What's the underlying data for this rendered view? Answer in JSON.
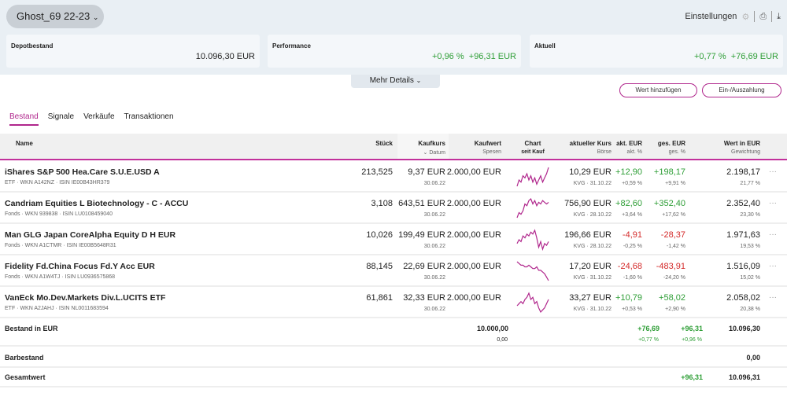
{
  "header": {
    "depot": "Ghost_69 22-23",
    "settings": "Einstellungen",
    "icons": [
      "gear-icon",
      "printer-icon",
      "download-icon"
    ]
  },
  "cards": [
    {
      "label": "Depotbestand",
      "value": "10.096,30 EUR"
    },
    {
      "label": "Performance",
      "pct": "+0,96 %",
      "eur": "+96,31 EUR"
    },
    {
      "label": "Aktuell",
      "pct": "+0,77 %",
      "eur": "+76,69 EUR"
    }
  ],
  "more_details": "Mehr Details",
  "buttons": {
    "add": "Wert hinzufügen",
    "deposit": "Ein-/Auszahlung"
  },
  "tabs": [
    "Bestand",
    "Signale",
    "Verkäufe",
    "Transaktionen"
  ],
  "columns": {
    "name": "Name",
    "stueck": "Stück",
    "kaufkurs": "Kaufkurs",
    "datum": "Datum",
    "kaufwert": "Kaufwert",
    "spesen": "Spesen",
    "chart": "Chart",
    "seit_kauf": "seit Kauf",
    "kurs": "aktueller Kurs",
    "boerse": "Börse",
    "akt_eur": "akt. EUR",
    "akt_pct": "akt. %",
    "ges_eur": "ges. EUR",
    "ges_pct": "ges. %",
    "wert": "Wert in EUR",
    "gewichtung": "Gewichtung"
  },
  "colors": {
    "accent": "#b0268c",
    "positive": "#2e9e36",
    "negative": "#d42a2a"
  },
  "rows": [
    {
      "name": "iShares S&P 500 Hea.Care S.U.E.USD A",
      "meta": "ETF · WKN A142NZ · ISIN IE00B43HR379",
      "stueck": "213,525",
      "kaufkurs": "9,37 EUR",
      "datum": "30.06.22",
      "kaufwert": "2.000,00 EUR",
      "kurs": "10,29 EUR",
      "boerse": "KVG · 31.10.22",
      "akt_eur": "+12,90",
      "akt_pct": "+0,59 %",
      "ges_eur": "+198,17",
      "ges_pct": "+9,91 %",
      "wert": "2.198,17",
      "gewichtung": "21,77 %",
      "trend": "up",
      "spark": [
        3,
        6,
        5,
        8,
        7,
        9,
        6,
        8,
        5,
        7,
        4,
        6,
        8,
        5,
        7,
        9,
        12
      ]
    },
    {
      "name": "Candriam Equities L Biotechnology - C - ACCU",
      "meta": "Fonds · WKN 939838 · ISIN LU0108459040",
      "stueck": "3,108",
      "kaufkurs": "643,51 EUR",
      "datum": "30.06.22",
      "kaufwert": "2.000,00 EUR",
      "kurs": "756,90 EUR",
      "boerse": "KVG · 28.10.22",
      "akt_eur": "+82,60",
      "akt_pct": "+3,64 %",
      "ges_eur": "+352,40",
      "ges_pct": "+17,62 %",
      "wert": "2.352,40",
      "gewichtung": "23,30 %",
      "trend": "up",
      "spark": [
        1,
        4,
        3,
        5,
        9,
        8,
        11,
        12,
        9,
        11,
        8,
        10,
        9,
        11,
        10,
        9,
        10
      ]
    },
    {
      "name": "Man GLG Japan CoreAlpha Equity D H EUR",
      "meta": "Fonds · WKN A1CTMR · ISIN IE00B5648R31",
      "stueck": "10,026",
      "kaufkurs": "199,49 EUR",
      "datum": "30.06.22",
      "kaufwert": "2.000,00 EUR",
      "kurs": "196,66 EUR",
      "boerse": "KVG · 28.10.22",
      "akt_eur": "-4,91",
      "akt_pct": "-0,25 %",
      "ges_eur": "-28,37",
      "ges_pct": "-1,42 %",
      "wert": "1.971,63",
      "gewichtung": "19,53 %",
      "trend": "down",
      "spark": [
        5,
        7,
        6,
        9,
        8,
        10,
        9,
        11,
        10,
        12,
        8,
        3,
        6,
        2,
        5,
        4,
        6
      ]
    },
    {
      "name": "Fidelity Fd.China Focus Fd.Y Acc EUR",
      "meta": "Fonds · WKN A1W4TJ · ISIN LU0936575868",
      "stueck": "88,145",
      "kaufkurs": "22,69 EUR",
      "datum": "30.06.22",
      "kaufwert": "2.000,00 EUR",
      "kurs": "17,20 EUR",
      "boerse": "KVG · 31.10.22",
      "akt_eur": "-24,68",
      "akt_pct": "-1,60 %",
      "ges_eur": "-483,91",
      "ges_pct": "-24,20 %",
      "wert": "1.516,09",
      "gewichtung": "15,02 %",
      "trend": "down",
      "spark": [
        12,
        11,
        10,
        10,
        9,
        9,
        10,
        9,
        8,
        8,
        9,
        7,
        7,
        6,
        5,
        3,
        1
      ]
    },
    {
      "name": "VanEck Mo.Dev.Markets Div.L.UCITS ETF",
      "meta": "ETF · WKN A2JAHJ · ISIN NL0011683594",
      "stueck": "61,861",
      "kaufkurs": "32,33 EUR",
      "datum": "30.06.22",
      "kaufwert": "2.000,00 EUR",
      "kurs": "33,27 EUR",
      "boerse": "KVG · 31.10.22",
      "akt_eur": "+10,79",
      "akt_pct": "+0,53 %",
      "ges_eur": "+58,02",
      "ges_pct": "+2,90 %",
      "wert": "2.058,02",
      "gewichtung": "20,38 %",
      "trend": "up",
      "spark": [
        5,
        6,
        7,
        6,
        8,
        9,
        11,
        8,
        9,
        6,
        7,
        4,
        2,
        3,
        4,
        6,
        8
      ]
    }
  ],
  "totals": {
    "bestand": {
      "label": "Bestand in EUR",
      "kaufwert": "10.000,00",
      "spesen": "0,00",
      "akt_eur": "+76,69",
      "akt_pct": "+0,77 %",
      "ges_eur": "+96,31",
      "ges_pct": "+0,96 %",
      "wert": "10.096,30"
    },
    "bar": {
      "label": "Barbestand",
      "wert": "0,00"
    },
    "gesamt": {
      "label": "Gesamtwert",
      "ges_eur": "+96,31",
      "wert": "10.096,31"
    }
  }
}
